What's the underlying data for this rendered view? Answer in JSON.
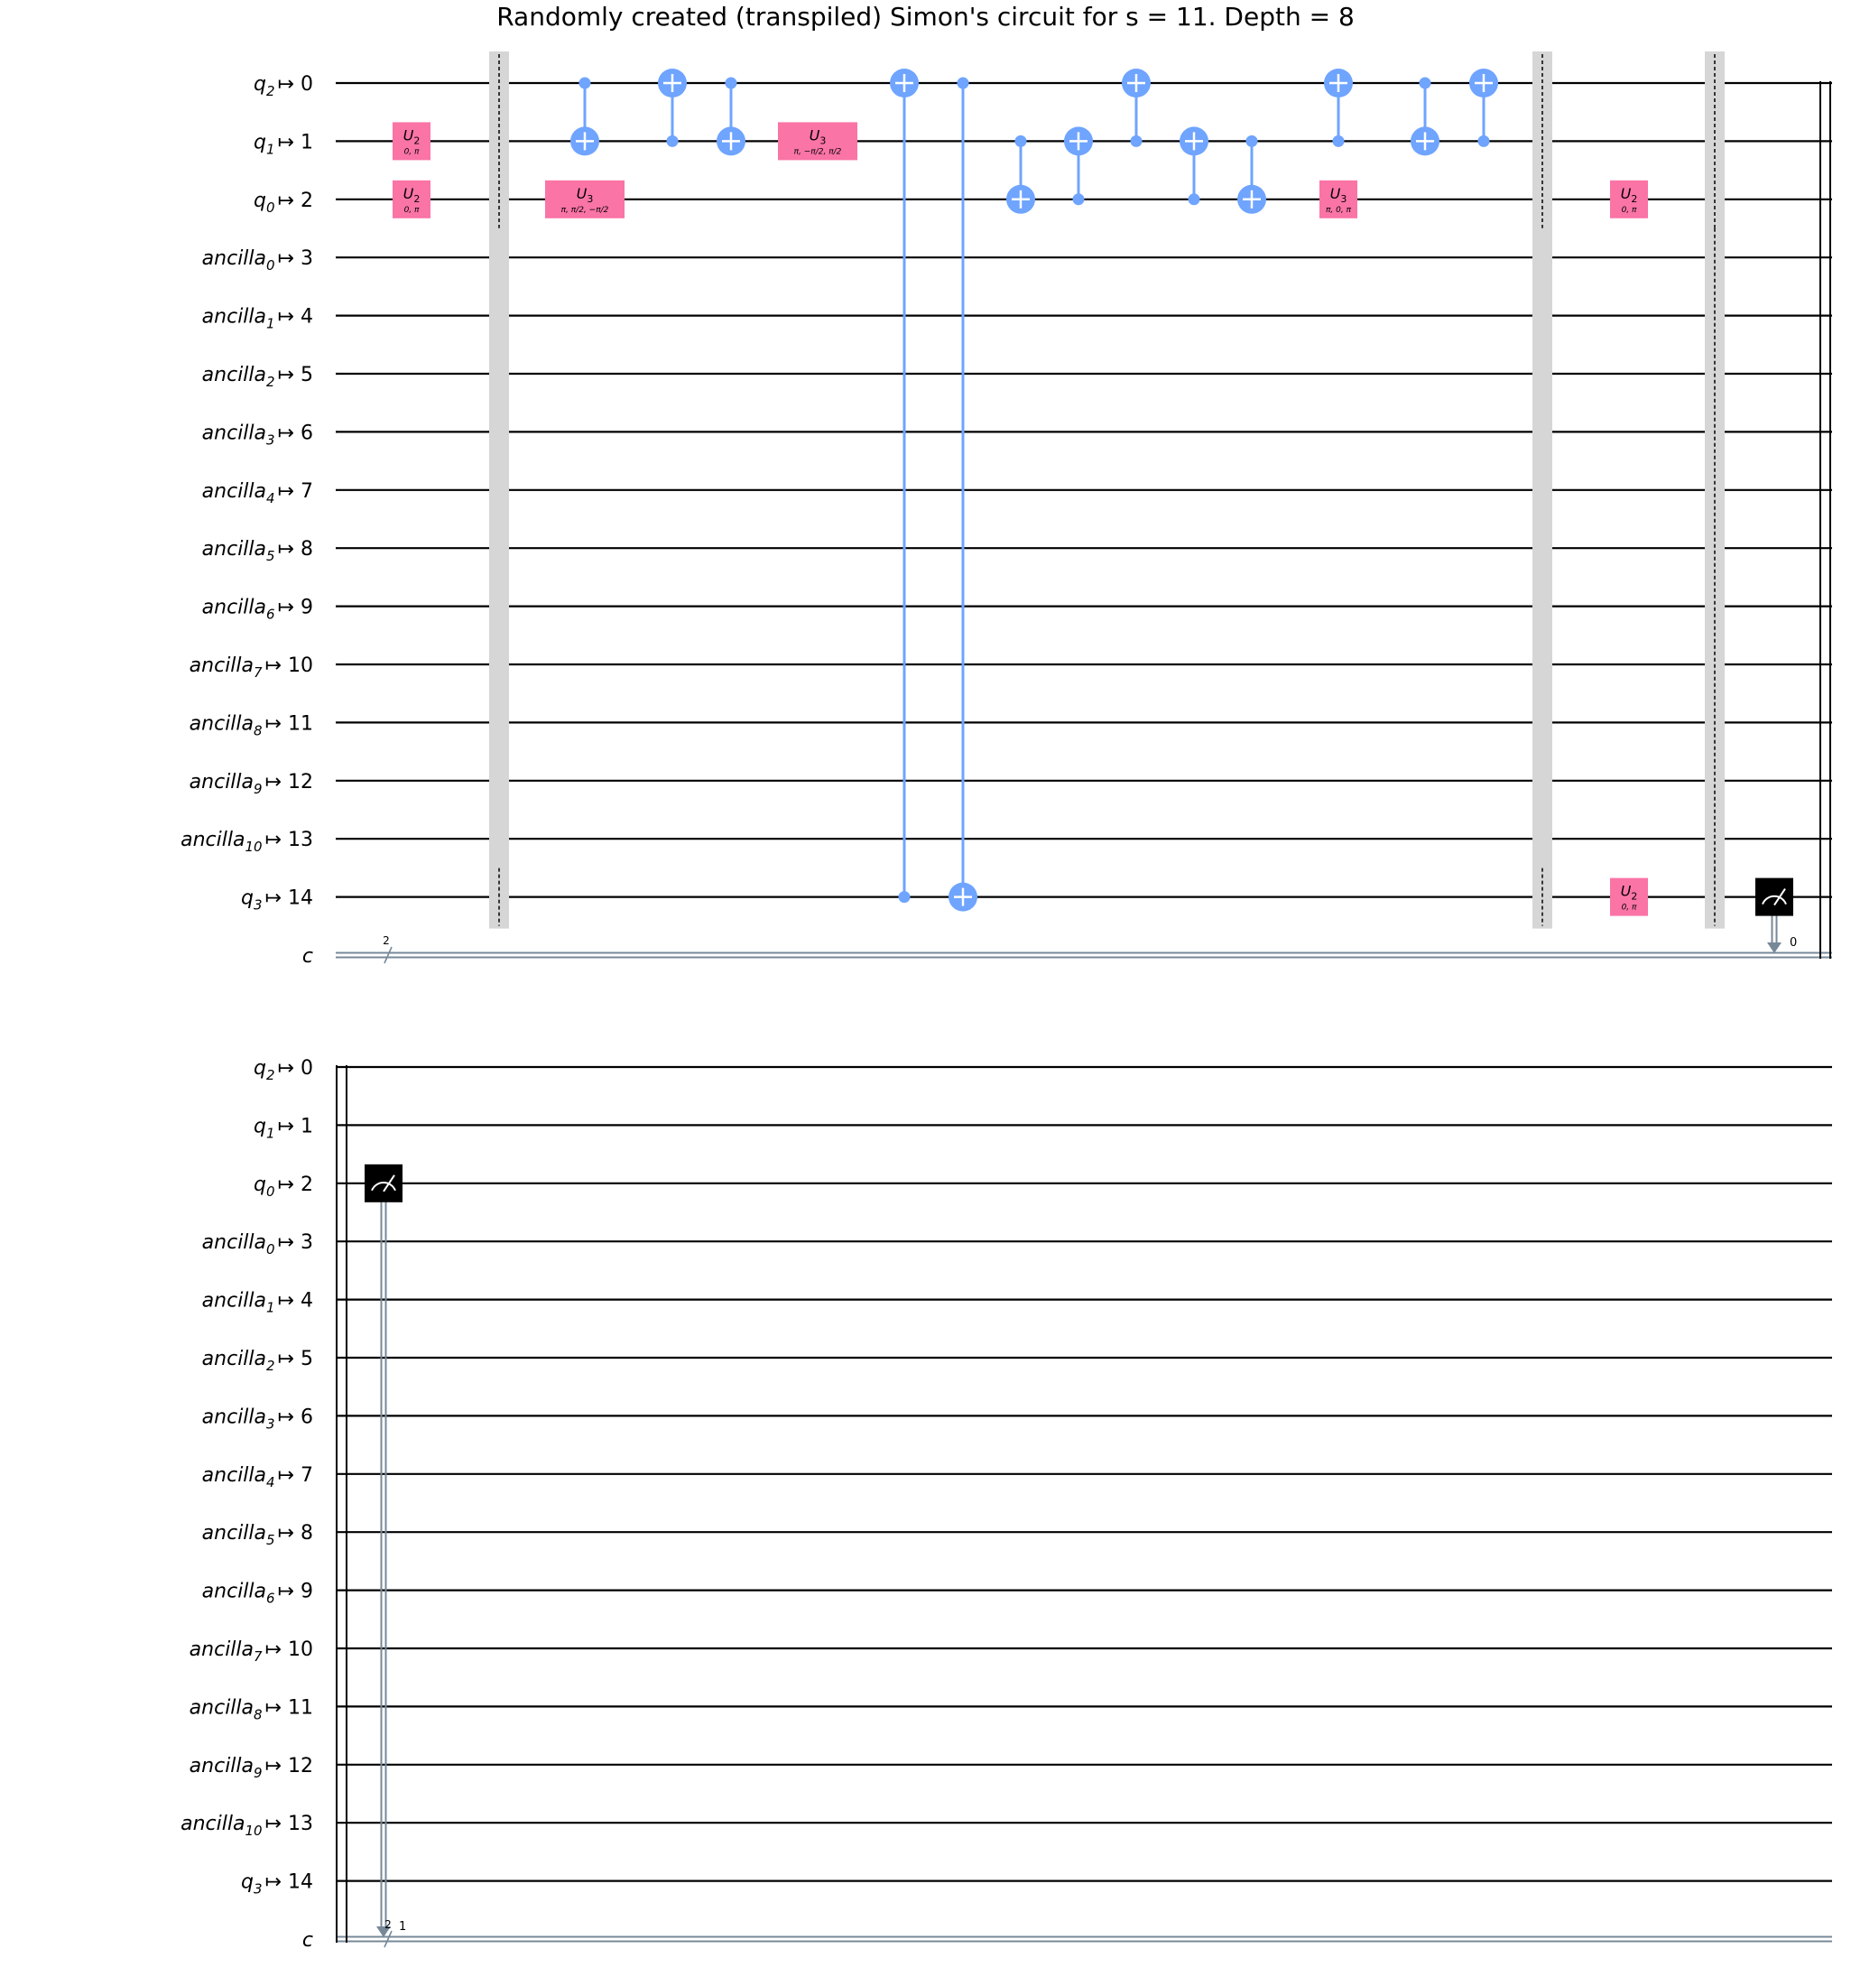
{
  "title": "Randomly created (transpiled) Simon's circuit for s = 11. Depth = 8",
  "colors": {
    "wire": "#000000",
    "cwire": "#778899",
    "cx": "#6fa4ff",
    "u_gate": "#fa74a6",
    "barrier": "#d6d6d6",
    "measure": "#000000"
  },
  "qubits": [
    {
      "name": "q",
      "sub": "2",
      "index": "0"
    },
    {
      "name": "q",
      "sub": "1",
      "index": "1"
    },
    {
      "name": "q",
      "sub": "0",
      "index": "2"
    },
    {
      "name": "ancilla",
      "sub": "0",
      "index": "3"
    },
    {
      "name": "ancilla",
      "sub": "1",
      "index": "4"
    },
    {
      "name": "ancilla",
      "sub": "2",
      "index": "5"
    },
    {
      "name": "ancilla",
      "sub": "3",
      "index": "6"
    },
    {
      "name": "ancilla",
      "sub": "4",
      "index": "7"
    },
    {
      "name": "ancilla",
      "sub": "5",
      "index": "8"
    },
    {
      "name": "ancilla",
      "sub": "6",
      "index": "9"
    },
    {
      "name": "ancilla",
      "sub": "7",
      "index": "10"
    },
    {
      "name": "ancilla",
      "sub": "8",
      "index": "11"
    },
    {
      "name": "ancilla",
      "sub": "9",
      "index": "12"
    },
    {
      "name": "ancilla",
      "sub": "10",
      "index": "13"
    },
    {
      "name": "q",
      "sub": "3",
      "index": "14"
    }
  ],
  "map_symbol": "↦",
  "classical_register": {
    "name": "c",
    "width_label": "2"
  },
  "panels": [
    {
      "ops": [
        {
          "type": "u",
          "wire": 1,
          "name": "U",
          "sub": "2",
          "params": "0, π"
        },
        {
          "type": "u",
          "wire": 2,
          "name": "U",
          "sub": "2",
          "params": "0, π"
        },
        {
          "type": "barrier",
          "wires": [
            0,
            1,
            2,
            14
          ]
        },
        {
          "type": "cx",
          "control": 0,
          "target": 1
        },
        {
          "type": "u",
          "wire": 2,
          "name": "U",
          "sub": "3",
          "params": "π, π/2, −π/2"
        },
        {
          "type": "cx",
          "control": 1,
          "target": 0
        },
        {
          "type": "cx",
          "control": 0,
          "target": 1
        },
        {
          "type": "u",
          "wire": 1,
          "name": "U",
          "sub": "3",
          "params": "π, −π/2, π/2"
        },
        {
          "type": "cx",
          "control": 14,
          "target": 0
        },
        {
          "type": "cx",
          "control": 0,
          "target": 14
        },
        {
          "type": "cx",
          "control": 1,
          "target": 2
        },
        {
          "type": "cx",
          "control": 2,
          "target": 1
        },
        {
          "type": "cx",
          "control": 1,
          "target": 0
        },
        {
          "type": "cx",
          "control": 2,
          "target": 1
        },
        {
          "type": "cx",
          "control": 1,
          "target": 2
        },
        {
          "type": "cx",
          "control": 1,
          "target": 0
        },
        {
          "type": "u",
          "wire": 2,
          "name": "U",
          "sub": "3",
          "params": "π, 0, π"
        },
        {
          "type": "cx",
          "control": 0,
          "target": 1
        },
        {
          "type": "cx",
          "control": 1,
          "target": 0
        },
        {
          "type": "barrier",
          "wires": [
            0,
            1,
            2,
            14
          ]
        },
        {
          "type": "u",
          "wire": 2,
          "name": "U",
          "sub": "2",
          "params": "0, π"
        },
        {
          "type": "u",
          "wire": 14,
          "name": "U",
          "sub": "2",
          "params": "0, π"
        },
        {
          "type": "barrier",
          "wires": [
            0,
            1,
            2,
            14
          ]
        },
        {
          "type": "measure",
          "wire": 14,
          "bit": "0"
        }
      ]
    },
    {
      "ops": [
        {
          "type": "measure",
          "wire": 2,
          "bit": "1"
        }
      ]
    }
  ]
}
